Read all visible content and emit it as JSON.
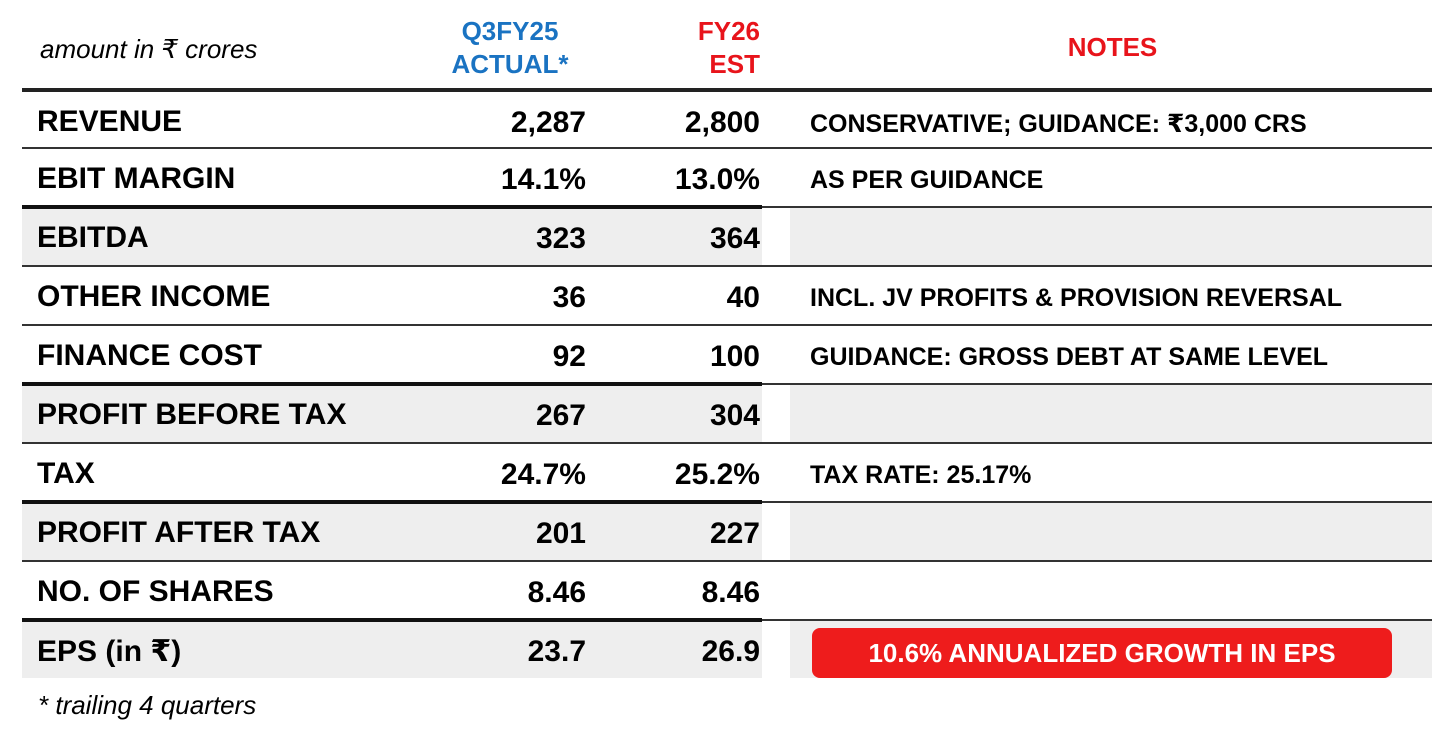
{
  "header": {
    "units": "amount in ₹ crores",
    "col_actual_line1": "Q3FY25",
    "col_actual_line2": "ACTUAL*",
    "col_est_line1": "FY26",
    "col_est_line2": "EST",
    "col_notes": "NOTES"
  },
  "rows": [
    {
      "label": "REVENUE",
      "actual": "2,287",
      "est": "2,800",
      "note": "CONSERVATIVE; GUIDANCE: ₹3,000 CRS"
    },
    {
      "label": "EBIT MARGIN",
      "actual": "14.1%",
      "est": "13.0%",
      "note": "AS PER GUIDANCE"
    },
    {
      "label": "EBITDA",
      "actual": "323",
      "est": "364",
      "note": ""
    },
    {
      "label": "OTHER INCOME",
      "actual": "36",
      "est": "40",
      "note": "INCL. JV PROFITS & PROVISION REVERSAL"
    },
    {
      "label": "FINANCE COST",
      "actual": "92",
      "est": "100",
      "note": "GUIDANCE: GROSS DEBT AT SAME LEVEL"
    },
    {
      "label": "PROFIT BEFORE TAX",
      "actual": "267",
      "est": "304",
      "note": ""
    },
    {
      "label": "TAX",
      "actual": "24.7%",
      "est": "25.2%",
      "note": "TAX RATE: 25.17%"
    },
    {
      "label": "PROFIT AFTER TAX",
      "actual": "201",
      "est": "227",
      "note": ""
    },
    {
      "label": "NO. OF SHARES",
      "actual": "8.46",
      "est": "8.46",
      "note": ""
    },
    {
      "label": "EPS (in ₹)",
      "actual": "23.7",
      "est": "26.9",
      "note": "10.6% ANNUALIZED GROWTH IN EPS"
    }
  ],
  "footnote": "* trailing 4 quarters",
  "colors": {
    "actual_header": "#1a73c2",
    "est_header": "#e8141b",
    "notes_header": "#e8141b",
    "highlight_bg": "#ee1c1c",
    "shaded_row": "#eeeeee"
  }
}
